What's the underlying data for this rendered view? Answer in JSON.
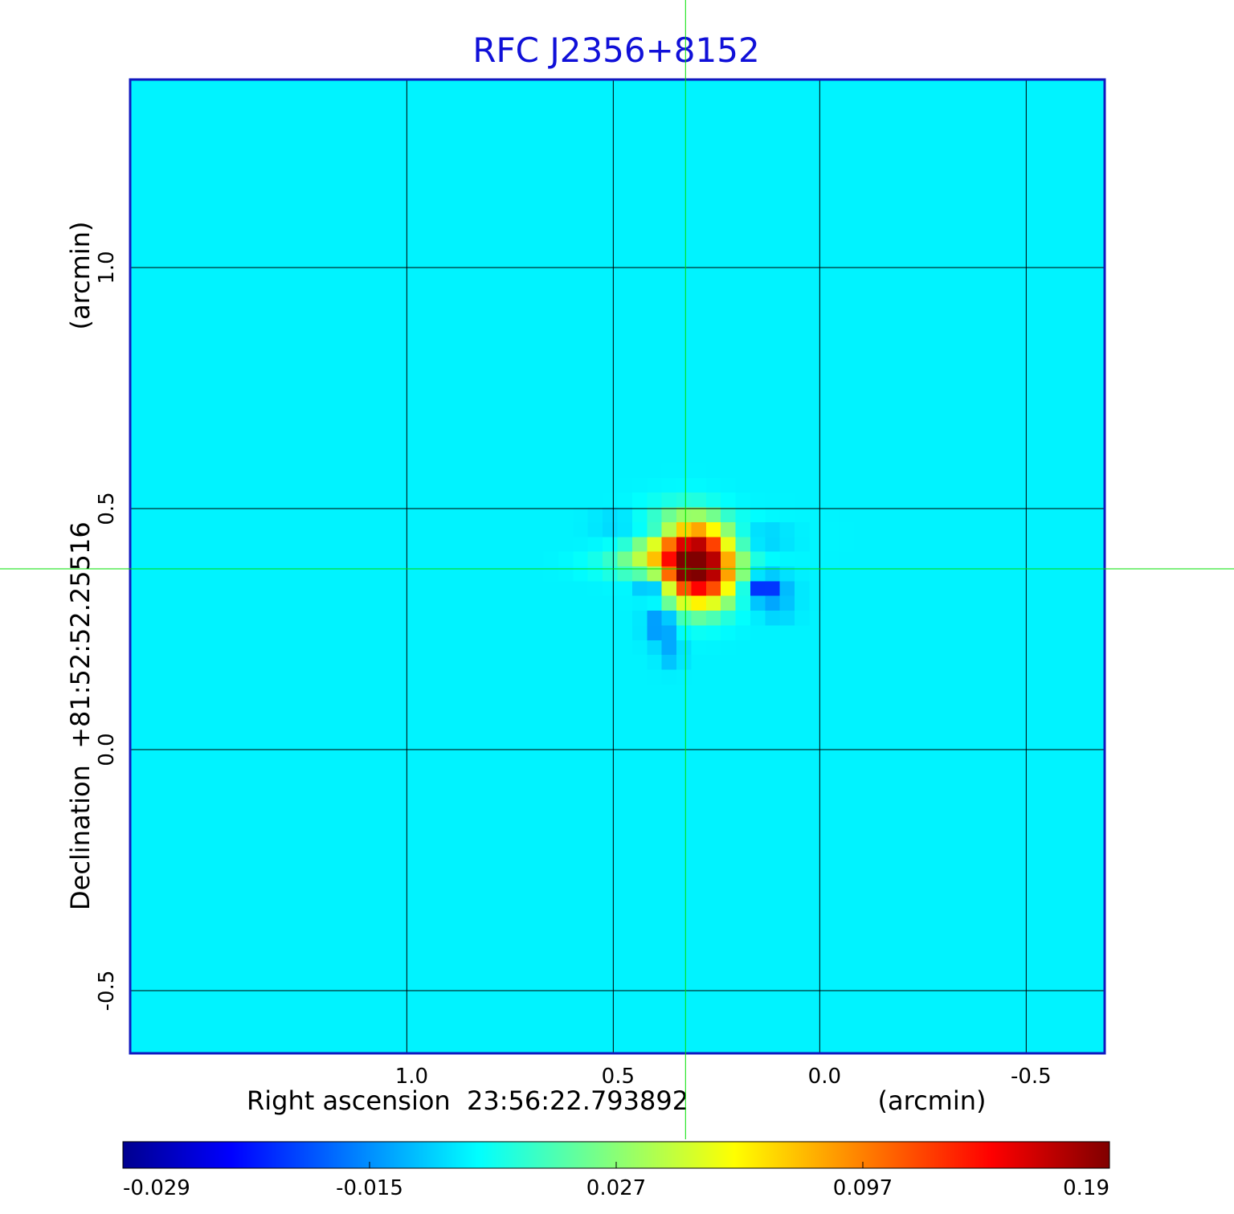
{
  "colors": {
    "title": "#1010d8",
    "frame": "#1018c0",
    "background_field": "#14f8f8",
    "grid": "#000000",
    "crosshair": "#00e000",
    "text": "#000000"
  },
  "chart_data": {
    "type": "heatmap",
    "title": "RFC J2356+8152",
    "xlabel": "Right ascension  23:56:22.793892",
    "xunit": "(arcmin)",
    "ylabel": "Declination  +81:52:52.25516",
    "yunit": "(arcmin)",
    "x_axis_direction": "decreasing",
    "xlim": [
      1.67,
      -0.69
    ],
    "ylim": [
      -0.63,
      1.39
    ],
    "x_ticks": [
      {
        "value": 1.0,
        "label": "1.0"
      },
      {
        "value": 0.5,
        "label": "0.5"
      },
      {
        "value": 0.0,
        "label": "0.0"
      },
      {
        "value": -0.5,
        "label": "-0.5"
      }
    ],
    "y_ticks": [
      {
        "value": 1.0,
        "label": "1.0"
      },
      {
        "value": 0.5,
        "label": "0.5"
      },
      {
        "value": 0.0,
        "label": "0.0"
      },
      {
        "value": -0.5,
        "label": "-0.5"
      }
    ],
    "grid": true,
    "crosshair": {
      "x": 0.325,
      "y": 0.375
    },
    "colorscale": "jet",
    "colorbar": {
      "placement": "bottom",
      "range": [
        -0.029,
        0.19
      ],
      "ticks": [
        {
          "value": -0.029,
          "label": "-0.029"
        },
        {
          "value": -0.015,
          "label": "-0.015"
        },
        {
          "value": 0.027,
          "label": "0.027"
        },
        {
          "value": 0.097,
          "label": "0.097"
        },
        {
          "value": 0.19,
          "label": "0.19"
        }
      ]
    },
    "background_value": 0.004,
    "features": [
      {
        "x": 0.3,
        "y": 0.385,
        "sx": 0.05,
        "sy": 0.05,
        "value": 0.19
      },
      {
        "x": 0.37,
        "y": 0.415,
        "sx": 0.055,
        "sy": 0.045,
        "value": 0.055
      },
      {
        "x": 0.255,
        "y": 0.36,
        "sx": 0.05,
        "sy": 0.04,
        "value": 0.045
      },
      {
        "x": 0.43,
        "y": 0.385,
        "sx": 0.08,
        "sy": 0.018,
        "value": 0.02
      },
      {
        "x": 0.22,
        "y": 0.44,
        "sx": 0.1,
        "sy": 0.03,
        "value": 0.015
      },
      {
        "x": 0.38,
        "y": 0.45,
        "sx": 0.045,
        "sy": 0.02,
        "value": -0.028
      },
      {
        "x": 0.4,
        "y": 0.345,
        "sx": 0.03,
        "sy": 0.02,
        "value": -0.03
      },
      {
        "x": 0.14,
        "y": 0.335,
        "sx": 0.04,
        "sy": 0.02,
        "value": -0.025
      },
      {
        "x": 0.15,
        "y": 0.44,
        "sx": 0.06,
        "sy": 0.02,
        "value": -0.012
      },
      {
        "x": 0.385,
        "y": 0.26,
        "sx": 0.025,
        "sy": 0.025,
        "value": -0.018
      },
      {
        "x": 0.36,
        "y": 0.2,
        "sx": 0.02,
        "sy": 0.02,
        "value": -0.008
      },
      {
        "x": 0.1,
        "y": 0.29,
        "sx": 0.03,
        "sy": 0.015,
        "value": -0.006
      },
      {
        "x": 0.49,
        "y": 0.47,
        "sx": 0.04,
        "sy": 0.015,
        "value": -0.004
      }
    ]
  }
}
